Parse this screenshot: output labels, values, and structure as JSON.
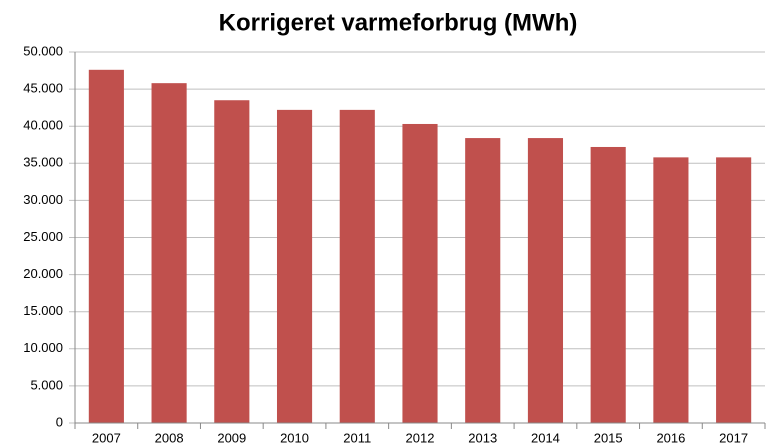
{
  "chart_data": {
    "type": "bar",
    "title": "Korrigeret varmeforbrug (MWh)",
    "categories": [
      "2007",
      "2008",
      "2009",
      "2010",
      "2011",
      "2012",
      "2013",
      "2014",
      "2015",
      "2016",
      "2017"
    ],
    "values": [
      47600,
      45800,
      43500,
      42200,
      42200,
      40300,
      38400,
      38400,
      37200,
      35800,
      35800
    ],
    "color": "#c0504d",
    "ylim": [
      0,
      50000
    ],
    "yticks": [
      0,
      {
        "value": 5000,
        "label": "5.000"
      },
      {
        "value": 10000,
        "label": "10.000"
      },
      {
        "value": 15000,
        "label": "15.000"
      },
      {
        "value": 20000,
        "label": "20.000"
      },
      {
        "value": 25000,
        "label": "25.000"
      },
      {
        "value": 30000,
        "label": "30.000"
      },
      {
        "value": 35000,
        "label": "35.000"
      },
      {
        "value": 40000,
        "label": "40.000"
      },
      {
        "value": 45000,
        "label": "45.000"
      },
      {
        "value": 50000,
        "label": "50.000"
      }
    ],
    "grid": true
  }
}
